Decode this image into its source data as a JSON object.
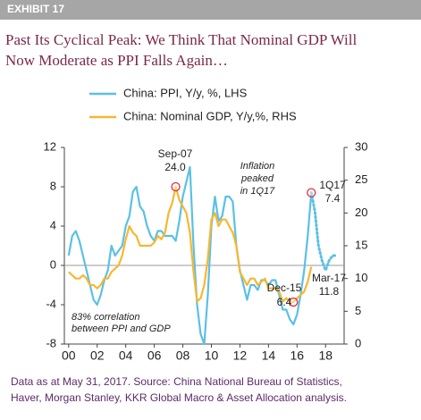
{
  "chart_data": {
    "type": "line",
    "exhibit": "EXHIBIT 17",
    "title": [
      "Past Its Cyclical Peak: We Think That Nominal GDP Will",
      "Now Moderate as PPI Falls Again…"
    ],
    "x": [
      2000,
      2000.25,
      2000.5,
      2000.75,
      2001,
      2001.25,
      2001.5,
      2001.75,
      2002,
      2002.25,
      2002.5,
      2002.75,
      2003,
      2003.25,
      2003.5,
      2003.75,
      2004,
      2004.25,
      2004.5,
      2004.75,
      2005,
      2005.25,
      2005.5,
      2005.75,
      2006,
      2006.25,
      2006.5,
      2006.75,
      2007,
      2007.25,
      2007.5,
      2007.75,
      2008,
      2008.25,
      2008.5,
      2008.75,
      2009,
      2009.25,
      2009.5,
      2009.75,
      2010,
      2010.25,
      2010.5,
      2010.75,
      2011,
      2011.25,
      2011.5,
      2011.75,
      2012,
      2012.25,
      2012.5,
      2012.75,
      2013,
      2013.25,
      2013.5,
      2013.75,
      2014,
      2014.25,
      2014.5,
      2014.75,
      2015,
      2015.25,
      2015.5,
      2015.75,
      2016,
      2016.25,
      2016.5,
      2016.75,
      2017
    ],
    "series": [
      {
        "name": "China: PPI, Y/y, %, LHS",
        "color": "#5bc0e6",
        "values": [
          1,
          3,
          3.5,
          2.5,
          1,
          -0.5,
          -2,
          -3.5,
          -4,
          -3,
          -1.5,
          -0.5,
          2,
          1,
          1.5,
          2,
          4,
          5,
          7.5,
          8,
          6,
          5.5,
          4,
          3,
          2.5,
          3.5,
          3.5,
          3,
          3,
          3,
          2.5,
          4.5,
          7,
          8.5,
          10,
          2,
          -4,
          -7,
          -8,
          -3,
          4,
          7,
          4.5,
          5,
          7,
          7,
          6.5,
          2,
          -0.5,
          -2,
          -3.5,
          -2,
          -2,
          -2.5,
          -1.5,
          -1.5,
          -2,
          -1.5,
          -1.5,
          -3,
          -4.5,
          -4.5,
          -5.5,
          -6,
          -5,
          -3,
          -0.5,
          3,
          7.4
        ]
      },
      {
        "name": "China: Nominal GDP, Y/y,%, RHS",
        "color": "#f7b731",
        "axis": "y2",
        "values": [
          11,
          10.5,
          10,
          10,
          10.5,
          10,
          9,
          9,
          8.5,
          9,
          10,
          10,
          11,
          11.5,
          12,
          13.5,
          16,
          18,
          17,
          16.5,
          15,
          15,
          15,
          15,
          15.5,
          16.5,
          16,
          17,
          20,
          21.5,
          24,
          22,
          21,
          20,
          17,
          11,
          6.5,
          7,
          9,
          13,
          19,
          20,
          18,
          19,
          19,
          18,
          17,
          15,
          11,
          10,
          9,
          10,
          10,
          9,
          9.5,
          10,
          8.5,
          8.5,
          8.5,
          8,
          6.5,
          7,
          6.5,
          6.4,
          7,
          7.5,
          8,
          9.5,
          11.8
        ]
      },
      {
        "color": "#5bc0e6",
        "dashed": true,
        "x": [
          2017,
          2017.25,
          2017.5,
          2017.75,
          2018,
          2018.25,
          2018.5,
          2018.75
        ],
        "values": [
          7.4,
          5.5,
          2,
          0.5,
          -0.5,
          0.5,
          1,
          1
        ]
      }
    ],
    "xlim": [
      1999.7,
      2019.3
    ],
    "xticks": [
      {
        "value": 2000,
        "label": "00"
      },
      {
        "value": 2002,
        "label": "02"
      },
      {
        "value": 2004,
        "label": "04"
      },
      {
        "value": 2006,
        "label": "06"
      },
      {
        "value": 2008,
        "label": "08"
      },
      {
        "value": 2010,
        "label": "10"
      },
      {
        "value": 2012,
        "label": "12"
      },
      {
        "value": 2014,
        "label": "14"
      },
      {
        "value": 2016,
        "label": "16"
      },
      {
        "value": 2018,
        "label": "18"
      }
    ],
    "ylim": [
      -8,
      12
    ],
    "yticks": [
      -8,
      -4,
      0,
      4,
      8,
      12
    ],
    "y2lim": [
      0,
      30
    ],
    "y2ticks": [
      0,
      5,
      10,
      15,
      20,
      25,
      30
    ],
    "grid": false,
    "annotations": [
      "Sep-07",
      "24.0",
      "Inflation",
      "peaked",
      "in 1Q17",
      "1Q17",
      "7.4",
      "Dec-15",
      "6.4",
      "Mar-17",
      "11.8",
      "83% correlation",
      "between PPI and GDP"
    ],
    "source": [
      "Data as at May 31, 2017. Source: China National Bureau of Statistics,",
      "Haver, Morgan Stanley, KKR Global Macro & Asset Allocation analysis."
    ]
  }
}
